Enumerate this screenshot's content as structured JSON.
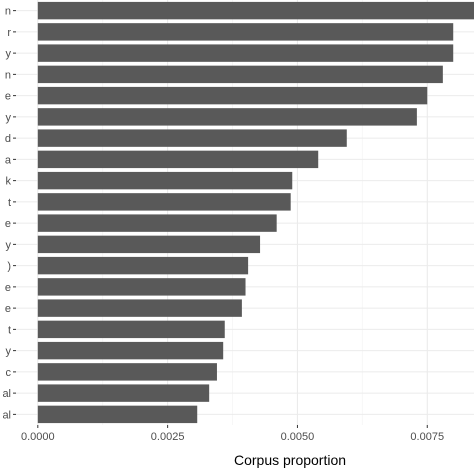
{
  "chart_data": {
    "type": "bar",
    "orientation": "horizontal",
    "categories": [
      "n",
      "r",
      "y",
      "n",
      "e",
      "y",
      "d",
      "a",
      "k",
      "t",
      "e",
      "y",
      ")",
      "e",
      "e",
      "t",
      "y",
      "c",
      "al",
      "al"
    ],
    "values": [
      0.0084,
      0.008,
      0.008,
      0.0078,
      0.0075,
      0.0073,
      0.00595,
      0.0054,
      0.0049,
      0.00487,
      0.0046,
      0.00428,
      0.00405,
      0.004,
      0.00393,
      0.0036,
      0.00357,
      0.00345,
      0.0033,
      0.00307
    ],
    "xlabel": "Corpus proportion",
    "ylabel": "",
    "title": "",
    "xlim": [
      -0.00042,
      0.0084
    ],
    "xticks": [
      "0.0000",
      "0.0025",
      "0.0050",
      "0.0075"
    ],
    "xtick_values": [
      0,
      0.0025,
      0.005,
      0.0075
    ],
    "grid": true,
    "colors": {
      "bar": "#595959",
      "grid_major": "#ebebeb",
      "grid_minor": "#f5f5f5",
      "highlight_label": "#2a4d7f"
    },
    "highlight_category_index": 8
  }
}
